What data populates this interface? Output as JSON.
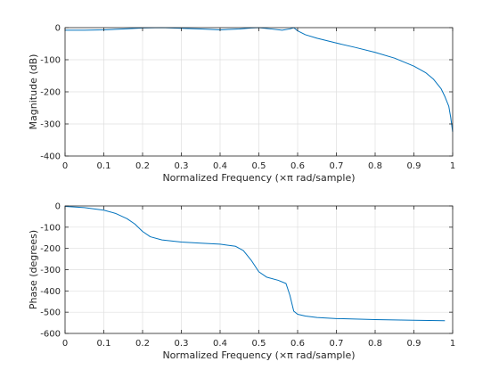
{
  "chart_data": [
    {
      "type": "line",
      "title": "",
      "xlabel": "Normalized Frequency  (×π rad/sample)",
      "ylabel": "Magnitude (dB)",
      "xlim": [
        0,
        1
      ],
      "ylim": [
        -400,
        0
      ],
      "xticks": [
        0,
        0.1,
        0.2,
        0.3,
        0.4,
        0.5,
        0.6,
        0.7,
        0.8,
        0.9,
        1
      ],
      "yticks": [
        -400,
        -300,
        -200,
        -100,
        0
      ],
      "xtick_labels": [
        "0",
        "0.1",
        "0.2",
        "0.3",
        "0.4",
        "0.5",
        "0.6",
        "0.7",
        "0.8",
        "0.9",
        "1"
      ],
      "ytick_labels": [
        "-400",
        "-300",
        "-200",
        "-100",
        "0"
      ],
      "grid": true,
      "line_color": "#0072BD",
      "series": [
        {
          "x": [
            0,
            0.05,
            0.1,
            0.15,
            0.2,
            0.25,
            0.3,
            0.35,
            0.4,
            0.45,
            0.48,
            0.5,
            0.53,
            0.56,
            0.58,
            0.59,
            0.6,
            0.62,
            0.65,
            0.7,
            0.75,
            0.8,
            0.85,
            0.9,
            0.93,
            0.95,
            0.97,
            0.98,
            0.99,
            0.995,
            1.0
          ],
          "y": [
            -8,
            -8,
            -7,
            -4,
            -1,
            0,
            -2,
            -4,
            -7,
            -4,
            -1,
            0,
            -4,
            -8,
            -4,
            0,
            -10,
            -22,
            -33,
            -48,
            -62,
            -77,
            -95,
            -120,
            -140,
            -160,
            -190,
            -215,
            -245,
            -280,
            -325
          ]
        }
      ]
    },
    {
      "type": "line",
      "title": "",
      "xlabel": "Normalized Frequency  (×π rad/sample)",
      "ylabel": "Phase (degrees)",
      "xlim": [
        0,
        1
      ],
      "ylim": [
        -600,
        0
      ],
      "xticks": [
        0,
        0.1,
        0.2,
        0.3,
        0.4,
        0.5,
        0.6,
        0.7,
        0.8,
        0.9,
        1
      ],
      "yticks": [
        -600,
        -500,
        -400,
        -300,
        -200,
        -100,
        0
      ],
      "xtick_labels": [
        "0",
        "0.1",
        "0.2",
        "0.3",
        "0.4",
        "0.5",
        "0.6",
        "0.7",
        "0.8",
        "0.9",
        "1"
      ],
      "ytick_labels": [
        "-600",
        "-500",
        "-400",
        "-300",
        "-200",
        "-100",
        "0"
      ],
      "grid": true,
      "line_color": "#0072BD",
      "series": [
        {
          "x": [
            0,
            0.05,
            0.1,
            0.13,
            0.16,
            0.18,
            0.2,
            0.22,
            0.25,
            0.3,
            0.35,
            0.4,
            0.44,
            0.46,
            0.48,
            0.5,
            0.52,
            0.55,
            0.57,
            0.58,
            0.59,
            0.6,
            0.62,
            0.65,
            0.7,
            0.8,
            0.9,
            0.98
          ],
          "y": [
            -2,
            -8,
            -20,
            -35,
            -60,
            -85,
            -120,
            -145,
            -160,
            -170,
            -175,
            -180,
            -190,
            -210,
            -255,
            -310,
            -335,
            -350,
            -365,
            -420,
            -495,
            -510,
            -518,
            -525,
            -530,
            -535,
            -538,
            -540
          ]
        }
      ]
    }
  ]
}
